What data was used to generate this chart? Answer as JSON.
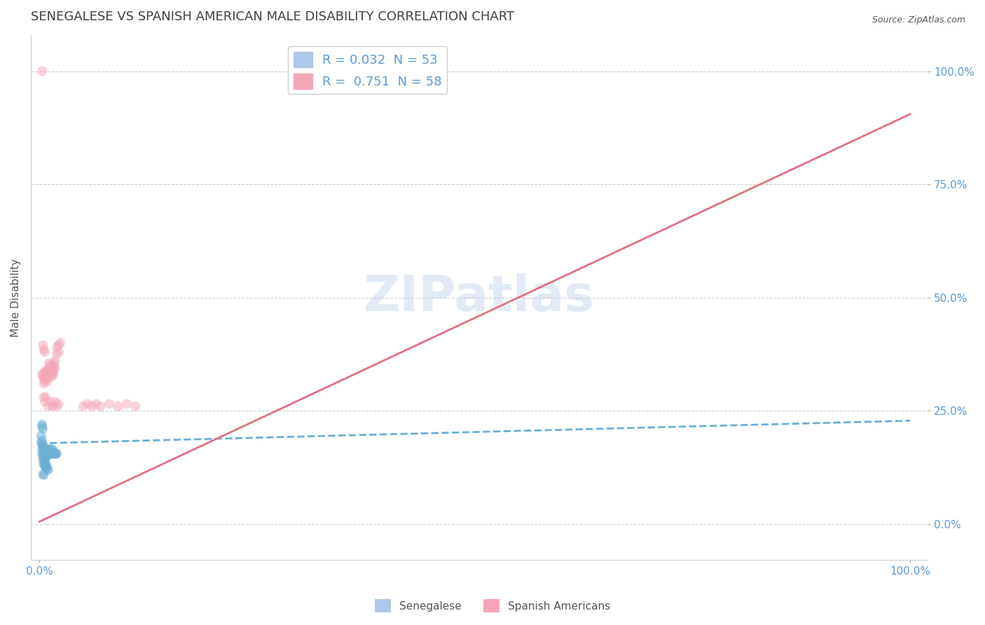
{
  "title": "SENEGALESE VS SPANISH AMERICAN MALE DISABILITY CORRELATION CHART",
  "source_text": "Source: ZipAtlas.com",
  "ylabel": "Male Disability",
  "watermark": "ZIPatlas",
  "x_tick_labels": [
    "0.0%",
    "100.0%"
  ],
  "y_tick_labels": [
    "100.0%",
    "75.0%",
    "50.0%",
    "25.0%",
    "0.0%"
  ],
  "x_tick_positions": [
    0.0,
    1.0
  ],
  "y_tick_positions": [
    1.0,
    0.75,
    0.5,
    0.25,
    0.0
  ],
  "senegalese_color": "#6baed6",
  "spanish_color": "#f4a7b9",
  "senegalese_line_color": "#6baed6",
  "spanish_line_color": "#e07080",
  "tick_color": "#5b9bd5",
  "grid_color": "#cccccc",
  "background_color": "#ffffff",
  "title_color": "#404040",
  "senegalese_points": [
    [
      0.002,
      0.18
    ],
    [
      0.003,
      0.165
    ],
    [
      0.003,
      0.155
    ],
    [
      0.004,
      0.15
    ],
    [
      0.004,
      0.14
    ],
    [
      0.005,
      0.16
    ],
    [
      0.005,
      0.155
    ],
    [
      0.005,
      0.145
    ],
    [
      0.006,
      0.155
    ],
    [
      0.006,
      0.145
    ],
    [
      0.007,
      0.155
    ],
    [
      0.007,
      0.145
    ],
    [
      0.008,
      0.165
    ],
    [
      0.008,
      0.155
    ],
    [
      0.009,
      0.155
    ],
    [
      0.009,
      0.15
    ],
    [
      0.01,
      0.16
    ],
    [
      0.01,
      0.155
    ],
    [
      0.011,
      0.165
    ],
    [
      0.011,
      0.155
    ],
    [
      0.012,
      0.16
    ],
    [
      0.012,
      0.155
    ],
    [
      0.013,
      0.165
    ],
    [
      0.013,
      0.155
    ],
    [
      0.014,
      0.16
    ],
    [
      0.015,
      0.165
    ],
    [
      0.015,
      0.155
    ],
    [
      0.016,
      0.16
    ],
    [
      0.016,
      0.155
    ],
    [
      0.017,
      0.155
    ],
    [
      0.018,
      0.155
    ],
    [
      0.019,
      0.155
    ],
    [
      0.02,
      0.155
    ],
    [
      0.002,
      0.195
    ],
    [
      0.003,
      0.185
    ],
    [
      0.003,
      0.175
    ],
    [
      0.004,
      0.175
    ],
    [
      0.004,
      0.165
    ],
    [
      0.005,
      0.17
    ],
    [
      0.005,
      0.13
    ],
    [
      0.006,
      0.135
    ],
    [
      0.006,
      0.13
    ],
    [
      0.007,
      0.13
    ],
    [
      0.007,
      0.125
    ],
    [
      0.008,
      0.13
    ],
    [
      0.008,
      0.125
    ],
    [
      0.009,
      0.12
    ],
    [
      0.01,
      0.12
    ],
    [
      0.003,
      0.22
    ],
    [
      0.003,
      0.215
    ],
    [
      0.004,
      0.21
    ],
    [
      0.004,
      0.11
    ],
    [
      0.005,
      0.108
    ]
  ],
  "spanish_points": [
    [
      0.003,
      0.33
    ],
    [
      0.004,
      0.325
    ],
    [
      0.005,
      0.335
    ],
    [
      0.005,
      0.32
    ],
    [
      0.005,
      0.31
    ],
    [
      0.006,
      0.325
    ],
    [
      0.006,
      0.315
    ],
    [
      0.007,
      0.335
    ],
    [
      0.007,
      0.32
    ],
    [
      0.008,
      0.34
    ],
    [
      0.008,
      0.325
    ],
    [
      0.009,
      0.33
    ],
    [
      0.009,
      0.315
    ],
    [
      0.01,
      0.34
    ],
    [
      0.01,
      0.325
    ],
    [
      0.011,
      0.355
    ],
    [
      0.011,
      0.34
    ],
    [
      0.012,
      0.35
    ],
    [
      0.012,
      0.335
    ],
    [
      0.013,
      0.34
    ],
    [
      0.013,
      0.33
    ],
    [
      0.014,
      0.335
    ],
    [
      0.014,
      0.325
    ],
    [
      0.015,
      0.35
    ],
    [
      0.015,
      0.335
    ],
    [
      0.016,
      0.345
    ],
    [
      0.016,
      0.33
    ],
    [
      0.017,
      0.355
    ],
    [
      0.017,
      0.34
    ],
    [
      0.018,
      0.36
    ],
    [
      0.018,
      0.345
    ],
    [
      0.02,
      0.39
    ],
    [
      0.02,
      0.375
    ],
    [
      0.022,
      0.395
    ],
    [
      0.022,
      0.38
    ],
    [
      0.024,
      0.4
    ],
    [
      0.004,
      0.395
    ],
    [
      0.005,
      0.385
    ],
    [
      0.006,
      0.38
    ],
    [
      0.005,
      0.28
    ],
    [
      0.006,
      0.27
    ],
    [
      0.007,
      0.28
    ],
    [
      0.01,
      0.26
    ],
    [
      0.012,
      0.27
    ],
    [
      0.015,
      0.26
    ],
    [
      0.018,
      0.27
    ],
    [
      0.02,
      0.26
    ],
    [
      0.022,
      0.265
    ],
    [
      0.05,
      0.26
    ],
    [
      0.055,
      0.265
    ],
    [
      0.06,
      0.26
    ],
    [
      0.065,
      0.265
    ],
    [
      0.07,
      0.26
    ],
    [
      0.08,
      0.265
    ],
    [
      0.09,
      0.26
    ],
    [
      0.1,
      0.265
    ],
    [
      0.11,
      0.26
    ],
    [
      0.003,
      1.0
    ]
  ],
  "senegalese_R": 0.032,
  "senegalese_N": 53,
  "spanish_R": 0.751,
  "spanish_N": 58,
  "senegalese_line": {
    "x0": 0.0,
    "y0": 0.178,
    "x1": 1.0,
    "y1": 0.228
  },
  "spanish_line": {
    "x0": 0.0,
    "y0": 0.005,
    "x1": 1.0,
    "y1": 0.905
  },
  "xlim": [
    -0.01,
    1.02
  ],
  "ylim": [
    -0.08,
    1.08
  ],
  "marker_size": 100,
  "marker_alpha": 0.5,
  "legend_fontsize": 13,
  "title_fontsize": 13,
  "tick_fontsize": 11,
  "ylabel_fontsize": 11
}
